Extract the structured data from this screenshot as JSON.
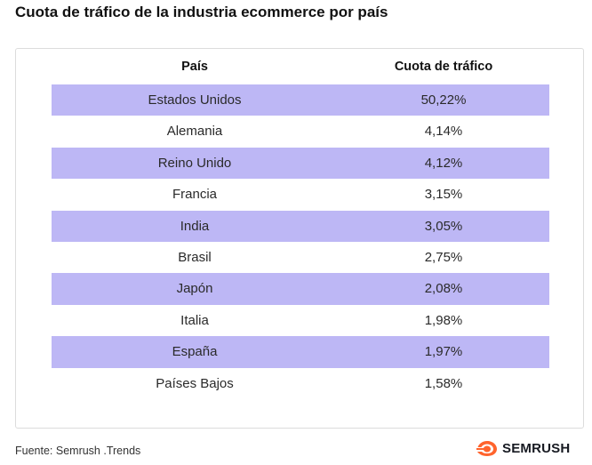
{
  "title": "Cuota de tráfico de la industria ecommerce por país",
  "table": {
    "headers": {
      "country": "País",
      "share": "Cuota de tráfico"
    },
    "rows": [
      {
        "country": "Estados Unidos",
        "share": "50,22%"
      },
      {
        "country": "Alemania",
        "share": "4,14%"
      },
      {
        "country": "Reino Unido",
        "share": "4,12%"
      },
      {
        "country": "Francia",
        "share": "3,15%"
      },
      {
        "country": "India",
        "share": "3,05%"
      },
      {
        "country": "Brasil",
        "share": "2,75%"
      },
      {
        "country": "Japón",
        "share": "2,08%"
      },
      {
        "country": "Italia",
        "share": "1,98%"
      },
      {
        "country": "España",
        "share": "1,97%"
      },
      {
        "country": "Países Bajos",
        "share": "1,58%"
      }
    ]
  },
  "source": "Fuente: Semrush .Trends",
  "logo": {
    "text": "SEMRUSH",
    "icon": "semrush-flame-icon",
    "color": "#ff642d"
  },
  "colors": {
    "row_highlight": "#bdb7f5"
  }
}
